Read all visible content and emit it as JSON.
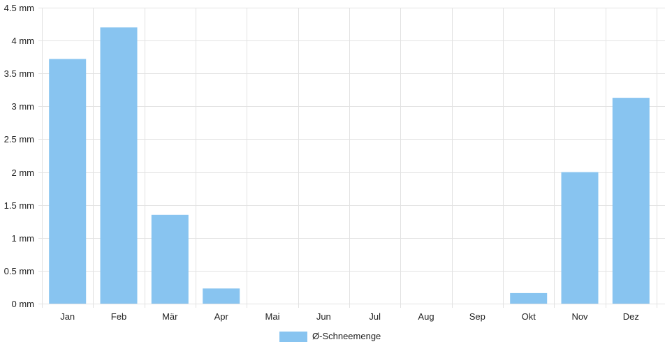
{
  "chart_data": {
    "type": "bar",
    "categories": [
      "Jan",
      "Feb",
      "Mär",
      "Apr",
      "Mai",
      "Jun",
      "Jul",
      "Aug",
      "Sep",
      "Okt",
      "Nov",
      "Dez"
    ],
    "series": [
      {
        "name": "Ø-Schneemenge",
        "values": [
          3.72,
          4.2,
          1.35,
          0.23,
          0,
          0,
          0,
          0,
          0,
          0.16,
          2.0,
          3.13
        ],
        "color": "#88c4f0"
      }
    ],
    "y_unit": "mm",
    "y_ticks": [
      {
        "value": 0,
        "label": "0 mm"
      },
      {
        "value": 0.5,
        "label": "0.5 mm"
      },
      {
        "value": 1,
        "label": "1 mm"
      },
      {
        "value": 1.5,
        "label": "1.5 mm"
      },
      {
        "value": 2,
        "label": "2 mm"
      },
      {
        "value": 2.5,
        "label": "2.5 mm"
      },
      {
        "value": 3,
        "label": "3 mm"
      },
      {
        "value": 3.5,
        "label": "3.5 mm"
      },
      {
        "value": 4,
        "label": "4 mm"
      },
      {
        "value": 4.5,
        "label": "4.5 mm"
      }
    ],
    "ylim": [
      0,
      4.5
    ],
    "grid": true,
    "legend_position": "bottom",
    "colors": {
      "bar": "#88c4f0",
      "grid": "#e2e2e2",
      "text": "#222222"
    }
  }
}
